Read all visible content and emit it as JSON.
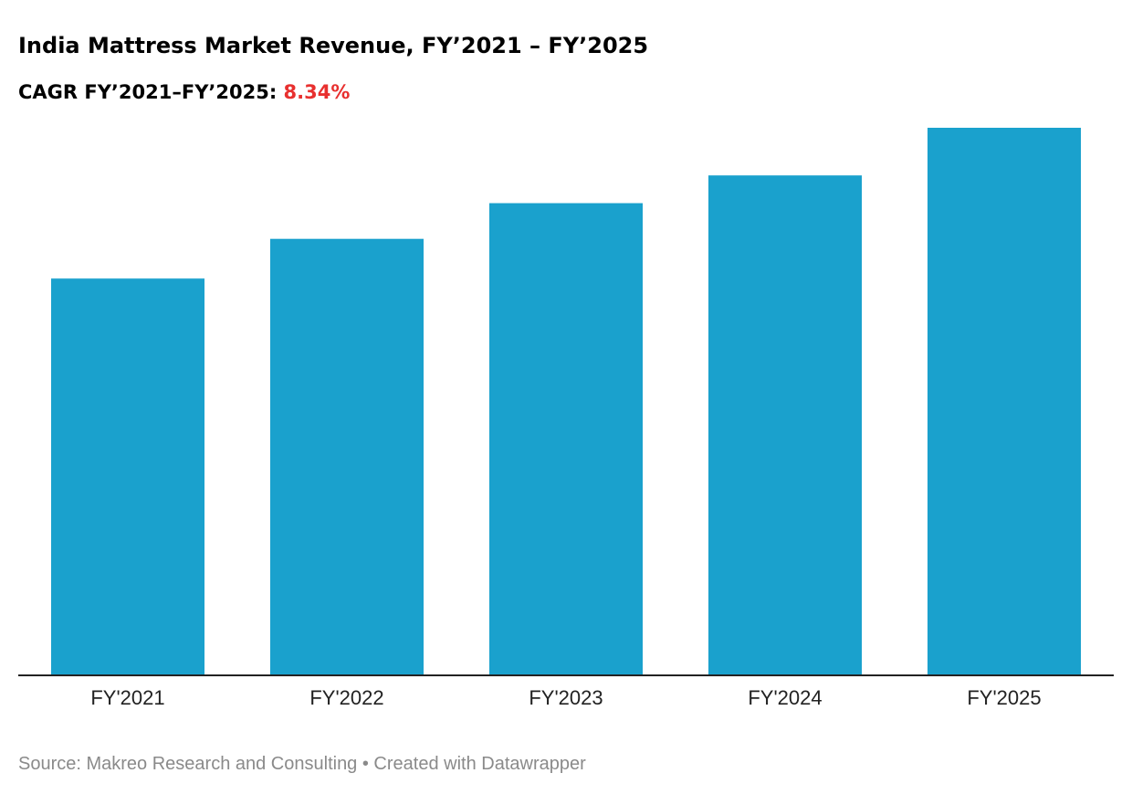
{
  "header": {
    "title": "India Mattress Market Revenue, FY’2021 – FY’2025",
    "subtitle_label": "CAGR FY’2021–FY’2025:",
    "subtitle_value": "8.34%"
  },
  "colors": {
    "bar": "#1aa1cd",
    "cagr_value": "#e8302f",
    "baseline": "#222222"
  },
  "chart_data": {
    "type": "bar",
    "title": "India Mattress Market Revenue, FY’2021 – FY’2025",
    "subtitle": "CAGR FY’2021–FY’2025: 8.34%",
    "categories": [
      "FY'2021",
      "FY'2022",
      "FY'2023",
      "FY'2024",
      "FY'2025"
    ],
    "values": [
      100,
      110,
      119,
      126,
      138
    ],
    "value_unit": "relative (FY'2021 = 100); no value axis or data labels shown",
    "xlabel": "",
    "ylabel": "",
    "ylim": [
      0,
      138
    ],
    "grid": false,
    "legend": "none"
  },
  "footer": {
    "source": "Source: Makreo Research and Consulting • Created with Datawrapper"
  }
}
